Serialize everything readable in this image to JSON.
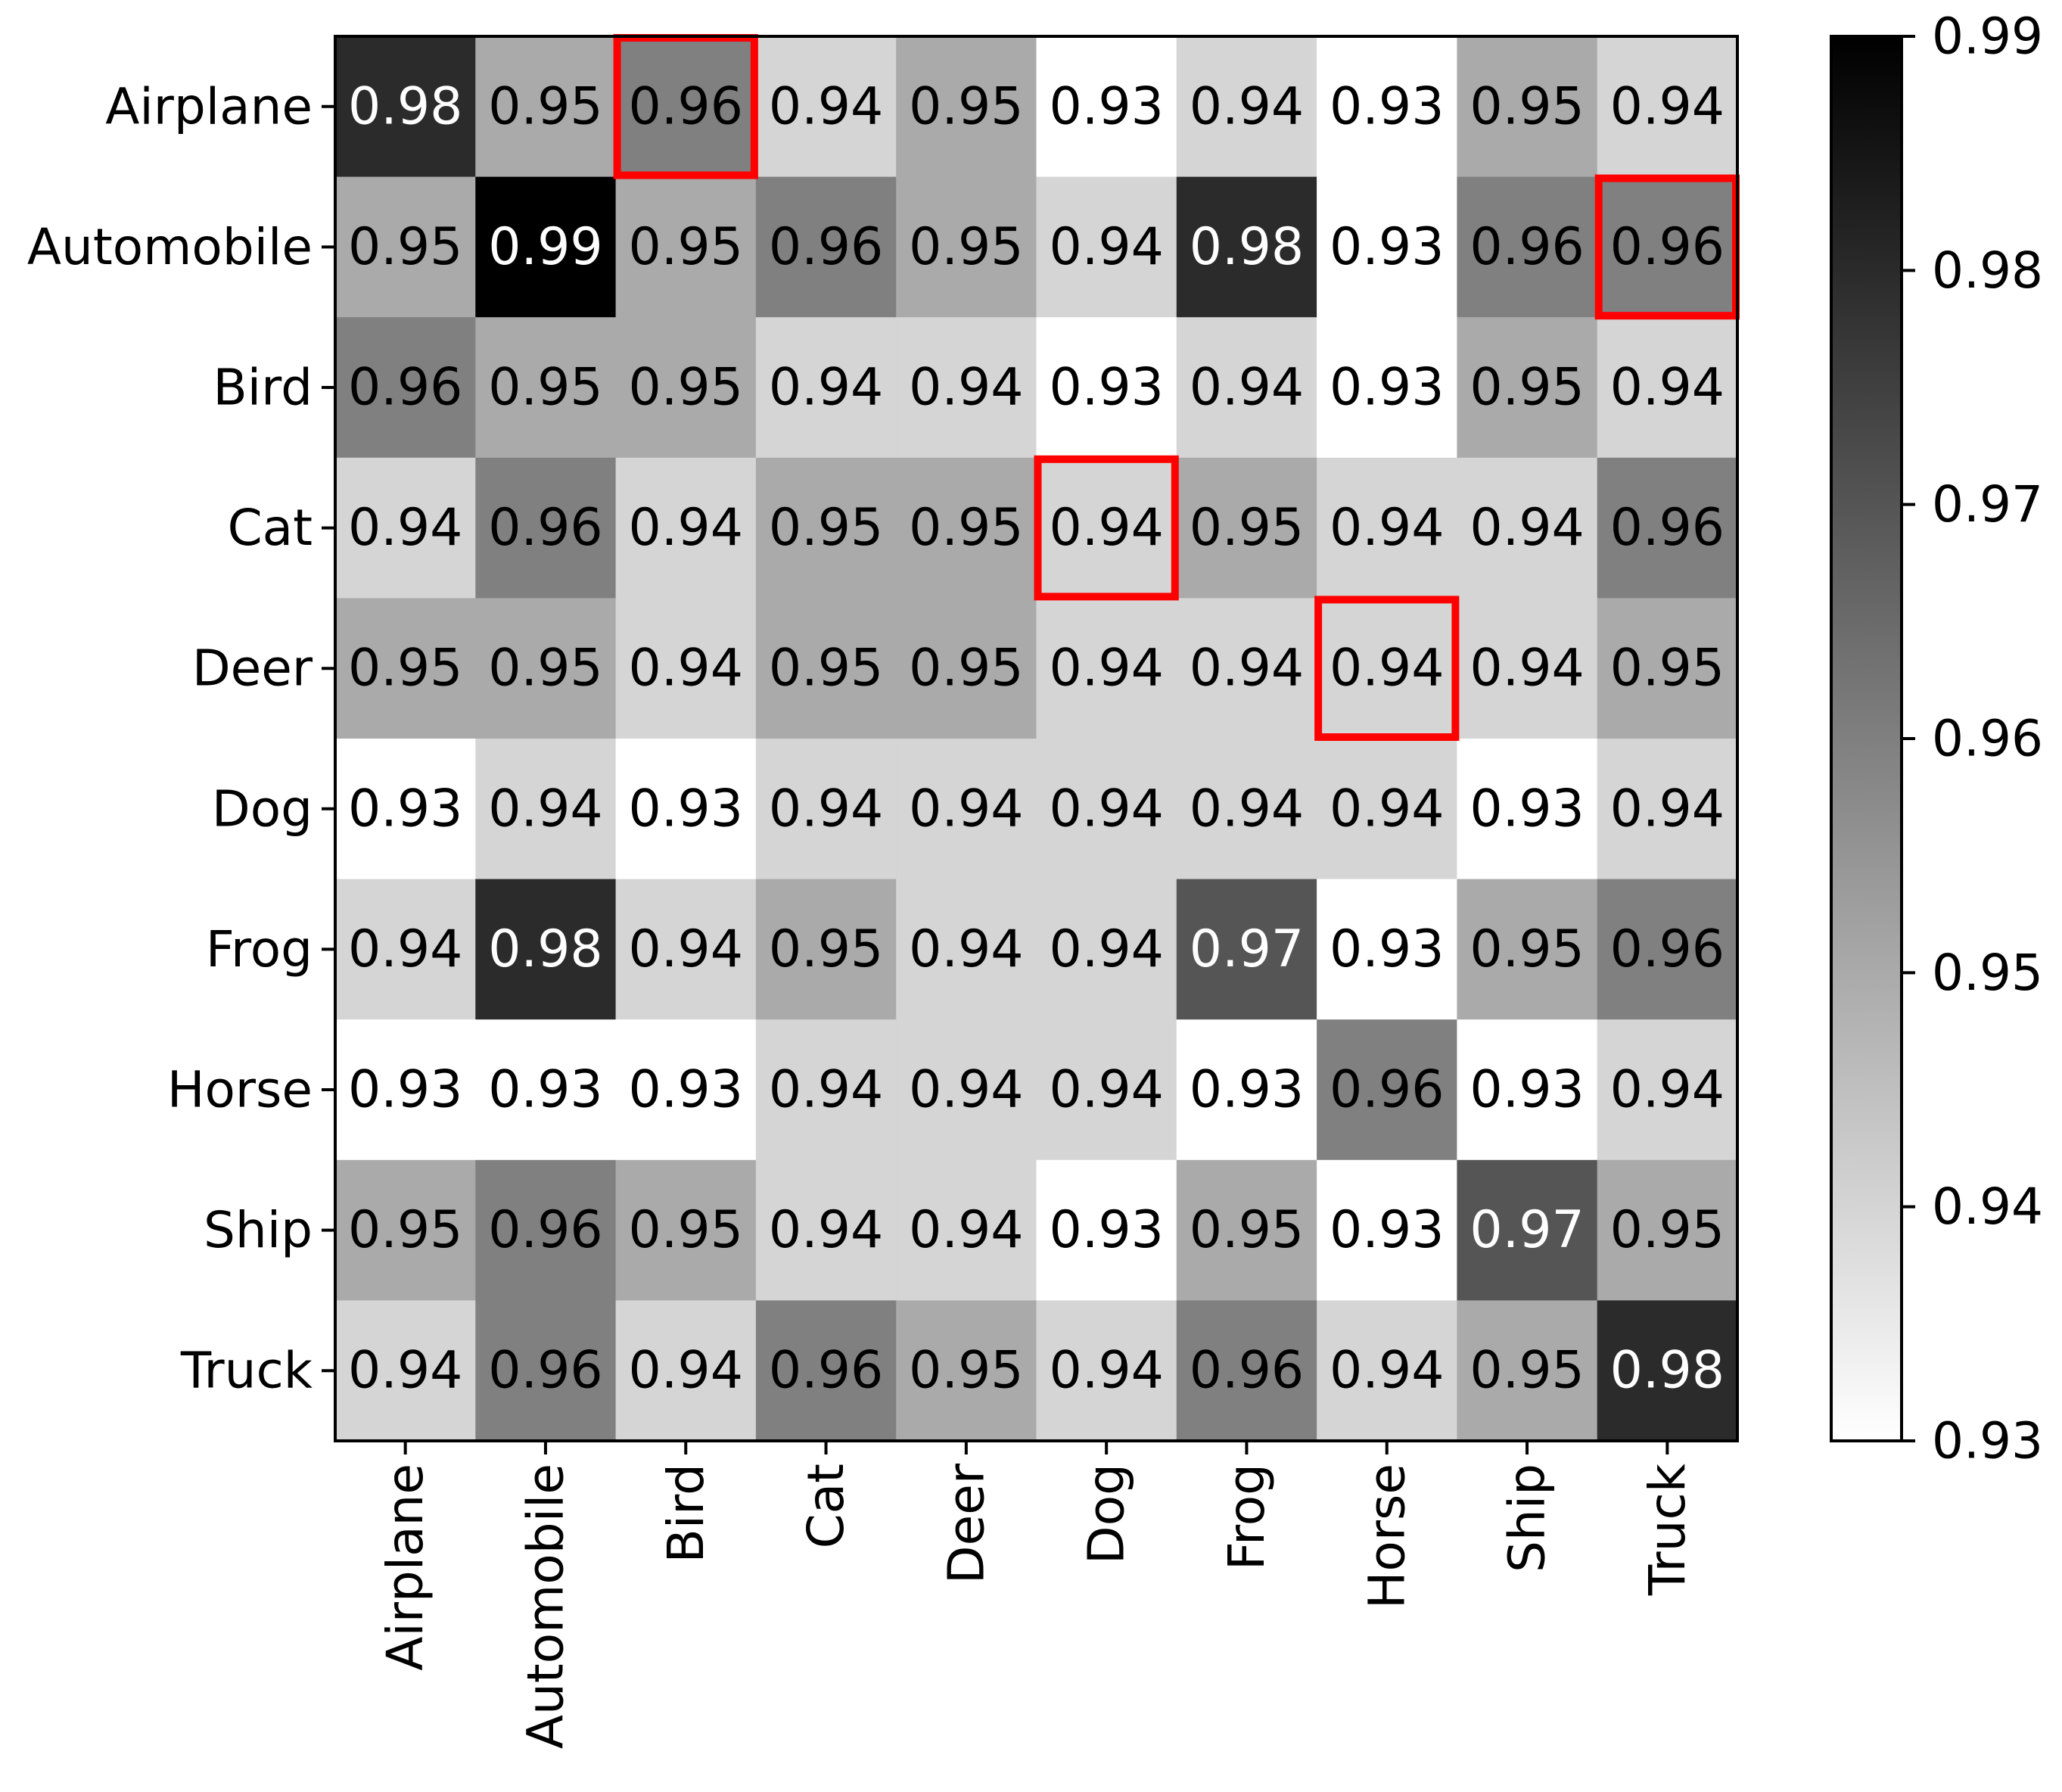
{
  "chart_data": {
    "type": "heatmap",
    "title": "",
    "xlabel": "",
    "ylabel": "",
    "row_labels": [
      "Airplane",
      "Automobile",
      "Bird",
      "Cat",
      "Deer",
      "Dog",
      "Frog",
      "Horse",
      "Ship",
      "Truck"
    ],
    "col_labels": [
      "Airplane",
      "Automobile",
      "Bird",
      "Cat",
      "Deer",
      "Dog",
      "Frog",
      "Horse",
      "Ship",
      "Truck"
    ],
    "values": [
      [
        0.98,
        0.95,
        0.96,
        0.94,
        0.95,
        0.93,
        0.94,
        0.93,
        0.95,
        0.94
      ],
      [
        0.95,
        0.99,
        0.95,
        0.96,
        0.95,
        0.94,
        0.98,
        0.93,
        0.96,
        0.96
      ],
      [
        0.96,
        0.95,
        0.95,
        0.94,
        0.94,
        0.93,
        0.94,
        0.93,
        0.95,
        0.94
      ],
      [
        0.94,
        0.96,
        0.94,
        0.95,
        0.95,
        0.94,
        0.95,
        0.94,
        0.94,
        0.96
      ],
      [
        0.95,
        0.95,
        0.94,
        0.95,
        0.95,
        0.94,
        0.94,
        0.94,
        0.94,
        0.95
      ],
      [
        0.93,
        0.94,
        0.93,
        0.94,
        0.94,
        0.94,
        0.94,
        0.94,
        0.93,
        0.94
      ],
      [
        0.94,
        0.98,
        0.94,
        0.95,
        0.94,
        0.94,
        0.97,
        0.93,
        0.95,
        0.96
      ],
      [
        0.93,
        0.93,
        0.93,
        0.94,
        0.94,
        0.94,
        0.93,
        0.96,
        0.93,
        0.94
      ],
      [
        0.95,
        0.96,
        0.95,
        0.94,
        0.94,
        0.93,
        0.95,
        0.93,
        0.97,
        0.95
      ],
      [
        0.94,
        0.96,
        0.94,
        0.96,
        0.95,
        0.94,
        0.96,
        0.94,
        0.95,
        0.98
      ]
    ],
    "colorbar": {
      "range": [
        0.93,
        0.99
      ],
      "ticks": [
        "0.93",
        "0.94",
        "0.95",
        "0.96",
        "0.97",
        "0.98",
        "0.99"
      ],
      "colormap": "white-to-black"
    },
    "highlighted_cells": [
      {
        "row": "Airplane",
        "col": "Bird"
      },
      {
        "row": "Automobile",
        "col": "Truck"
      },
      {
        "row": "Cat",
        "col": "Dog"
      },
      {
        "row": "Deer",
        "col": "Horse"
      }
    ],
    "highlight_color": "#ff0000"
  }
}
